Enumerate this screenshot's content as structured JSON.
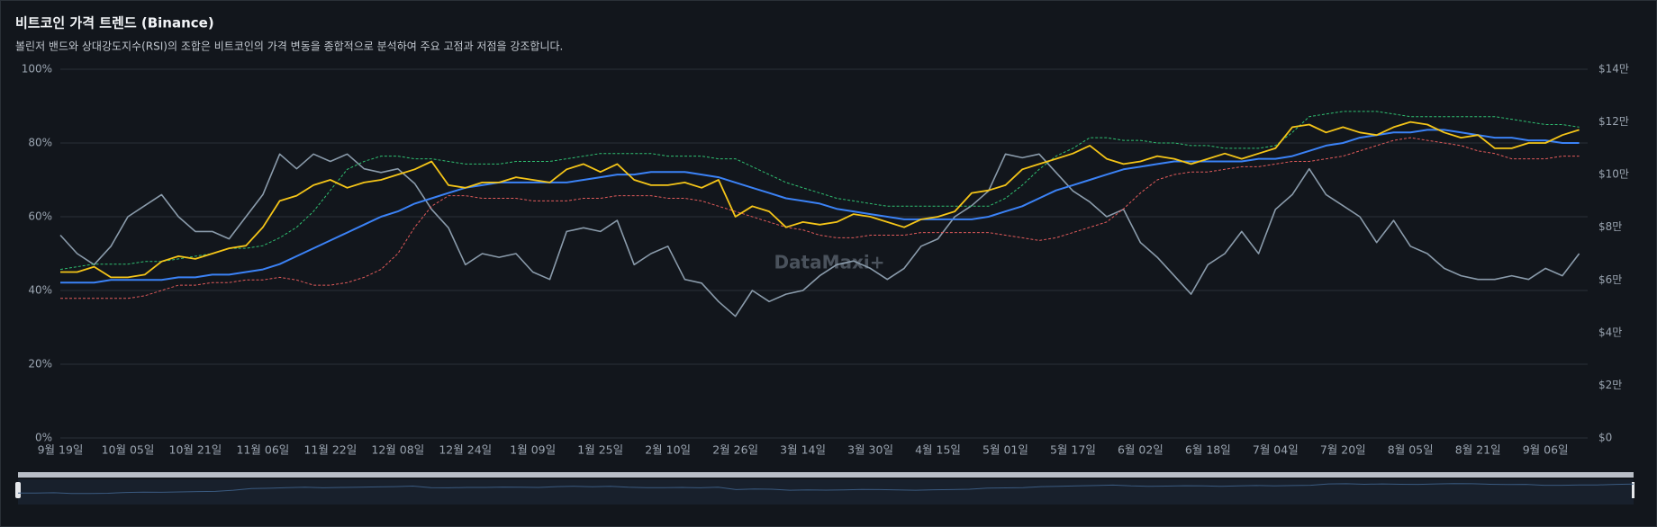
{
  "chart_data": {
    "type": "line",
    "title": "비트코인 가격 트렌드 (Binance)",
    "subtitle": "볼린저 밴드와 상대강도지수(RSI)의 조합은 비트코인의 가격 변동을 종합적으로 분석하여 주요 고점과 저점을 강조합니다.",
    "watermark": "DataMaxi+",
    "categories": [
      "9월 19일",
      null,
      null,
      null,
      "10월 05일",
      null,
      null,
      null,
      "10월 21일",
      null,
      null,
      null,
      "11월 06일",
      null,
      null,
      null,
      "11월 22일",
      null,
      null,
      null,
      "12월 08일",
      null,
      null,
      null,
      "12월 24일",
      null,
      null,
      null,
      "1월 09일",
      null,
      null,
      null,
      "1월 25일",
      null,
      null,
      null,
      "2월 10일",
      null,
      null,
      null,
      "2월 26일",
      null,
      null,
      null,
      "3월 14일",
      null,
      null,
      null,
      "3월 30일",
      null,
      null,
      null,
      "4월 15일",
      null,
      null,
      null,
      "5월 01일",
      null,
      null,
      null,
      "5월 17일",
      null,
      null,
      null,
      "6월 02일",
      null,
      null,
      null,
      "6월 18일",
      null,
      null,
      null,
      "7월 04일",
      null,
      null,
      null,
      "7월 20일",
      null,
      null,
      null,
      "8월 05일",
      null,
      null,
      null,
      "8월 21일",
      null,
      null,
      null,
      "9월 06일",
      null,
      null
    ],
    "ylim": [
      0,
      100
    ],
    "yticks": [
      {
        "value": 0,
        "label": "0%"
      },
      {
        "value": 20,
        "label": "20%"
      },
      {
        "value": 40,
        "label": "40%"
      },
      {
        "value": 60,
        "label": "60%"
      },
      {
        "value": 80,
        "label": "80%"
      },
      {
        "value": 100,
        "label": "100%"
      }
    ],
    "y2lim": [
      0,
      14
    ],
    "y2ticks": [
      {
        "value": 0,
        "label": "$0"
      },
      {
        "value": 2,
        "label": "$2만"
      },
      {
        "value": 4,
        "label": "$4만"
      },
      {
        "value": 6,
        "label": "$6만"
      },
      {
        "value": 8,
        "label": "$8만"
      },
      {
        "value": 10,
        "label": "$10만"
      },
      {
        "value": 12,
        "label": "$12만"
      },
      {
        "value": 14,
        "label": "$14만"
      }
    ],
    "grid": true,
    "series": [
      {
        "color": "#8a9bab",
        "width": 1.6,
        "dashed": false,
        "values": [
          55,
          50,
          47,
          52,
          60,
          63,
          66,
          60,
          56,
          56,
          54,
          60,
          66,
          77,
          73,
          77,
          75,
          77,
          73,
          72,
          73,
          69,
          62,
          57,
          47,
          50,
          49,
          50,
          45,
          43,
          56,
          57,
          56,
          59,
          47,
          50,
          52,
          43,
          42,
          37,
          33,
          40,
          37,
          39,
          40,
          44,
          47,
          48,
          46,
          43,
          46,
          52,
          54,
          60,
          63,
          67,
          77,
          76,
          77,
          72,
          67,
          64,
          60,
          62,
          53,
          49,
          44,
          39,
          47,
          50,
          56,
          50,
          62,
          66,
          73,
          66,
          63,
          60,
          53,
          59,
          52,
          50,
          46,
          44,
          43,
          43,
          44,
          43,
          46,
          44,
          50
        ]
      },
      {
        "color": "#e05a5a",
        "width": 1,
        "dashed": true,
        "axis": "y2",
        "values": [
          5.3,
          5.3,
          5.3,
          5.3,
          5.3,
          5.4,
          5.6,
          5.8,
          5.8,
          5.9,
          5.9,
          6.0,
          6.0,
          6.1,
          6.0,
          5.8,
          5.8,
          5.9,
          6.1,
          6.4,
          7.0,
          8.0,
          8.8,
          9.2,
          9.2,
          9.1,
          9.1,
          9.1,
          9.0,
          9.0,
          9.0,
          9.1,
          9.1,
          9.2,
          9.2,
          9.2,
          9.1,
          9.1,
          9.0,
          8.8,
          8.6,
          8.4,
          8.2,
          8.0,
          7.9,
          7.7,
          7.6,
          7.6,
          7.7,
          7.7,
          7.7,
          7.8,
          7.8,
          7.8,
          7.8,
          7.8,
          7.7,
          7.6,
          7.5,
          7.6,
          7.8,
          8.0,
          8.2,
          8.7,
          9.3,
          9.8,
          10.0,
          10.1,
          10.1,
          10.2,
          10.3,
          10.3,
          10.4,
          10.5,
          10.5,
          10.6,
          10.7,
          10.9,
          11.1,
          11.3,
          11.4,
          11.3,
          11.2,
          11.1,
          10.9,
          10.8,
          10.6,
          10.6,
          10.6,
          10.7,
          10.7
        ]
      },
      {
        "color": "#2fbf71",
        "width": 1,
        "dashed": true,
        "axis": "y2",
        "values": [
          6.4,
          6.5,
          6.6,
          6.6,
          6.6,
          6.7,
          6.7,
          6.8,
          6.9,
          7.0,
          7.2,
          7.2,
          7.3,
          7.6,
          8.0,
          8.6,
          9.4,
          10.2,
          10.5,
          10.7,
          10.7,
          10.6,
          10.6,
          10.5,
          10.4,
          10.4,
          10.4,
          10.5,
          10.5,
          10.5,
          10.6,
          10.7,
          10.8,
          10.8,
          10.8,
          10.8,
          10.7,
          10.7,
          10.7,
          10.6,
          10.6,
          10.3,
          10.0,
          9.7,
          9.5,
          9.3,
          9.1,
          9.0,
          8.9,
          8.8,
          8.8,
          8.8,
          8.8,
          8.8,
          8.8,
          8.8,
          9.1,
          9.6,
          10.2,
          10.7,
          11.0,
          11.4,
          11.4,
          11.3,
          11.3,
          11.2,
          11.2,
          11.1,
          11.1,
          11.0,
          11.0,
          11.0,
          11.1,
          11.6,
          12.2,
          12.3,
          12.4,
          12.4,
          12.4,
          12.3,
          12.2,
          12.2,
          12.2,
          12.2,
          12.2,
          12.2,
          12.1,
          12.0,
          11.9,
          11.9,
          11.8
        ]
      },
      {
        "color": "#3b82f6",
        "width": 2,
        "dashed": false,
        "axis": "y2",
        "values": [
          5.9,
          5.9,
          5.9,
          6.0,
          6.0,
          6.0,
          6.0,
          6.1,
          6.1,
          6.2,
          6.2,
          6.3,
          6.4,
          6.6,
          6.9,
          7.2,
          7.5,
          7.8,
          8.1,
          8.4,
          8.6,
          8.9,
          9.1,
          9.3,
          9.5,
          9.6,
          9.7,
          9.7,
          9.7,
          9.7,
          9.7,
          9.8,
          9.9,
          10.0,
          10.0,
          10.1,
          10.1,
          10.1,
          10.0,
          9.9,
          9.7,
          9.5,
          9.3,
          9.1,
          9.0,
          8.9,
          8.7,
          8.6,
          8.5,
          8.4,
          8.3,
          8.3,
          8.3,
          8.3,
          8.3,
          8.4,
          8.6,
          8.8,
          9.1,
          9.4,
          9.6,
          9.8,
          10.0,
          10.2,
          10.3,
          10.4,
          10.5,
          10.5,
          10.5,
          10.5,
          10.5,
          10.6,
          10.6,
          10.7,
          10.9,
          11.1,
          11.2,
          11.4,
          11.5,
          11.6,
          11.6,
          11.7,
          11.7,
          11.6,
          11.5,
          11.4,
          11.4,
          11.3,
          11.3,
          11.2,
          11.2
        ]
      },
      {
        "color": "#f5c518",
        "width": 1.8,
        "dashed": false,
        "axis": "y2",
        "values": [
          6.3,
          6.3,
          6.5,
          6.1,
          6.1,
          6.2,
          6.7,
          6.9,
          6.8,
          7.0,
          7.2,
          7.3,
          8.0,
          9.0,
          9.2,
          9.6,
          9.8,
          9.5,
          9.7,
          9.8,
          10.0,
          10.2,
          10.5,
          9.6,
          9.5,
          9.7,
          9.7,
          9.9,
          9.8,
          9.7,
          10.2,
          10.4,
          10.1,
          10.4,
          9.8,
          9.6,
          9.6,
          9.7,
          9.5,
          9.8,
          8.4,
          8.8,
          8.6,
          8.0,
          8.2,
          8.1,
          8.2,
          8.5,
          8.4,
          8.2,
          8.0,
          8.3,
          8.4,
          8.6,
          9.3,
          9.4,
          9.6,
          10.2,
          10.4,
          10.6,
          10.8,
          11.1,
          10.6,
          10.4,
          10.5,
          10.7,
          10.6,
          10.4,
          10.6,
          10.8,
          10.6,
          10.8,
          11.0,
          11.8,
          11.9,
          11.6,
          11.8,
          11.6,
          11.5,
          11.8,
          12.0,
          11.9,
          11.6,
          11.4,
          11.5,
          11.0,
          11.0,
          11.2,
          11.2,
          11.5,
          11.7
        ]
      }
    ]
  }
}
